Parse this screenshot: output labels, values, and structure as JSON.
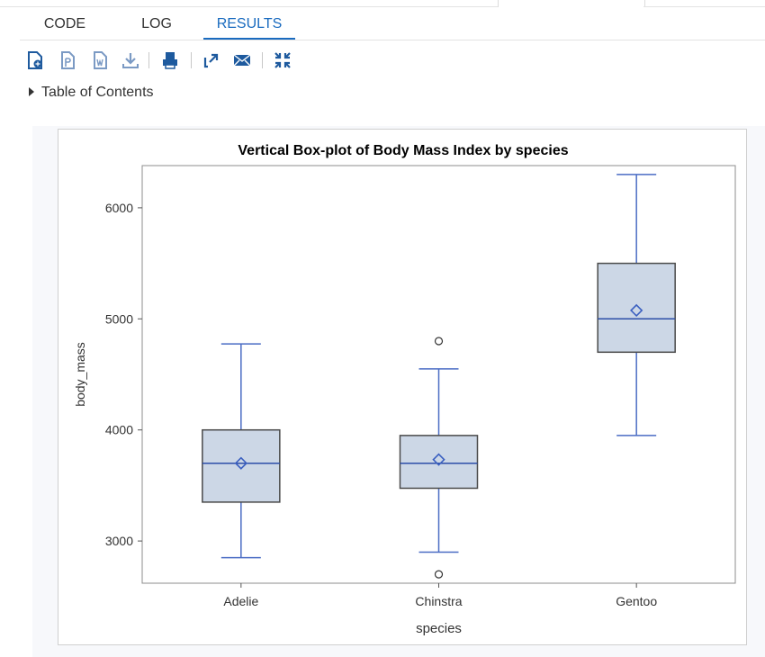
{
  "tabs": [
    {
      "label": "CODE"
    },
    {
      "label": "LOG"
    },
    {
      "label": "RESULTS",
      "active": true
    }
  ],
  "toolbar": {
    "buttons": [
      {
        "name": "download-html-icon"
      },
      {
        "name": "download-pdf-icon"
      },
      {
        "name": "download-word-icon"
      },
      {
        "name": "download-icon"
      },
      {
        "name": "print-icon"
      },
      {
        "name": "open-new-window-icon"
      },
      {
        "name": "email-icon"
      },
      {
        "name": "collapse-icon"
      }
    ]
  },
  "toc": {
    "label": "Table of Contents"
  },
  "colors": {
    "accent": "#1a6bbf",
    "box_fill": "#ccd7e6",
    "box_edge": "#4a4a4a",
    "whisker": "#4a6cc4",
    "median": "#2c4ea8",
    "mean_marker": "#3a5fc0"
  },
  "chart_data": {
    "type": "boxplot",
    "title": "Vertical Box-plot of Body Mass Index by species",
    "xlabel": "species",
    "ylabel": "body_mass",
    "ylim": [
      2620,
      6380
    ],
    "yticks": [
      3000,
      4000,
      5000,
      6000
    ],
    "categories": [
      "Adelie",
      "Chinstra",
      "Gentoo"
    ],
    "boxes": [
      {
        "category": "Adelie",
        "whisker_low": 2850,
        "q1": 3350,
        "median": 3700,
        "q3": 4000,
        "whisker_high": 4775,
        "mean": 3700,
        "outliers": []
      },
      {
        "category": "Chinstra",
        "whisker_low": 2900,
        "q1": 3475,
        "median": 3700,
        "q3": 3950,
        "whisker_high": 4550,
        "mean": 3733,
        "outliers": [
          4800,
          2700
        ]
      },
      {
        "category": "Gentoo",
        "whisker_low": 3950,
        "q1": 4700,
        "median": 5000,
        "q3": 5500,
        "whisker_high": 6300,
        "mean": 5076,
        "outliers": []
      }
    ],
    "grid": false,
    "legend": "none"
  }
}
